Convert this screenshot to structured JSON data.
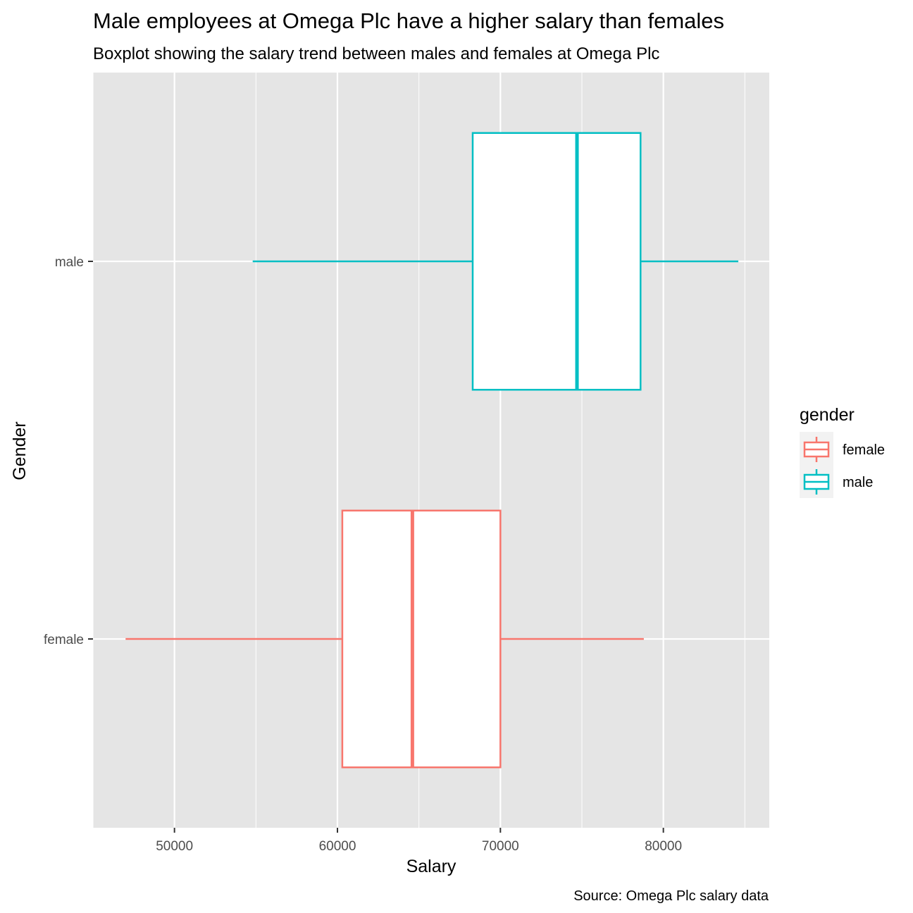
{
  "chart_data": {
    "type": "boxplot",
    "orientation": "horizontal",
    "title": "Male employees at Omega Plc have a higher salary than females",
    "subtitle": "Boxplot showing the salary trend between males and females at Omega Plc",
    "xlabel": "Salary",
    "ylabel": "Gender",
    "caption": "Source: Omega Plc salary data",
    "xlim": [
      45000,
      86500
    ],
    "x_ticks": [
      50000,
      60000,
      70000,
      80000
    ],
    "x_tick_labels": [
      "50000",
      "60000",
      "70000",
      "80000"
    ],
    "categories": [
      "female",
      "male"
    ],
    "grid": true,
    "legend": {
      "title": "gender",
      "position": "right",
      "entries": [
        "female",
        "male"
      ]
    },
    "series": [
      {
        "name": "female",
        "color": "#F8766D",
        "min": 47000,
        "q1": 60300,
        "median": 64600,
        "q3": 70000,
        "max": 78800
      },
      {
        "name": "male",
        "color": "#00BFC4",
        "min": 54800,
        "q1": 68300,
        "median": 74700,
        "q3": 78600,
        "max": 84600
      }
    ]
  }
}
